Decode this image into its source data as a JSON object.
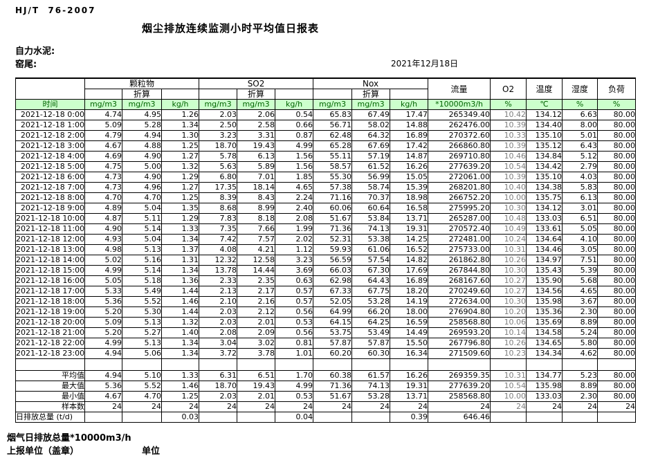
{
  "page": {
    "standard_code": "HJ/T  76-2007",
    "title": "烟尘排放连续监测小时平均值日报表",
    "company": "自力水泥:",
    "station": "窑尾:",
    "report_date": "2021年12月18日"
  },
  "table": {
    "time_label": "时间",
    "groups": {
      "pm": "颗粒物",
      "so2": "SO2",
      "nox": "Nox",
      "conv": "折算",
      "flow": "流量",
      "o2": "O2",
      "temp": "温度",
      "humidity": "湿度",
      "load": "负荷"
    },
    "units": [
      "mg/m3",
      "mg/m3",
      "kg/h",
      "mg/m3",
      "mg/m3",
      "kg/h",
      "mg/m3",
      "mg/m3",
      "kg/h",
      "*10000m3/h",
      "%",
      "℃",
      "%",
      "%"
    ],
    "rows": [
      [
        "2021-12-18 0:00",
        "4.74",
        "4.95",
        "1.26",
        "2.03",
        "2.06",
        "0.54",
        "65.83",
        "67.49",
        "17.47",
        "265349.40",
        "10.42",
        "134.12",
        "6.63",
        "80.00"
      ],
      [
        "2021-12-18 1:00",
        "5.09",
        "5.28",
        "1.34",
        "2.50",
        "2.58",
        "0.66",
        "56.71",
        "58.02",
        "14.88",
        "262476.00",
        "10.39",
        "134.40",
        "8.00",
        "80.00"
      ],
      [
        "2021-12-18 2:00",
        "4.79",
        "4.94",
        "1.30",
        "3.23",
        "3.31",
        "0.87",
        "62.48",
        "64.32",
        "16.89",
        "270372.60",
        "10.33",
        "135.10",
        "5.01",
        "80.00"
      ],
      [
        "2021-12-18 3:00",
        "4.67",
        "4.88",
        "1.25",
        "18.70",
        "19.43",
        "4.99",
        "65.28",
        "67.69",
        "17.42",
        "266860.80",
        "10.39",
        "135.12",
        "6.43",
        "80.00"
      ],
      [
        "2021-12-18 4:00",
        "4.69",
        "4.90",
        "1.27",
        "5.78",
        "6.13",
        "1.56",
        "55.11",
        "57.19",
        "14.87",
        "269710.80",
        "10.46",
        "134.84",
        "5.12",
        "80.00"
      ],
      [
        "2021-12-18 5:00",
        "4.75",
        "5.00",
        "1.32",
        "5.63",
        "5.89",
        "1.56",
        "58.57",
        "61.52",
        "16.26",
        "277639.20",
        "10.54",
        "134.42",
        "2.79",
        "80.00"
      ],
      [
        "2021-12-18 6:00",
        "4.73",
        "4.90",
        "1.29",
        "6.80",
        "7.01",
        "1.85",
        "55.30",
        "56.99",
        "15.05",
        "272061.00",
        "10.39",
        "135.10",
        "4.03",
        "80.00"
      ],
      [
        "2021-12-18 7:00",
        "4.73",
        "4.96",
        "1.27",
        "17.35",
        "18.14",
        "4.65",
        "57.38",
        "58.74",
        "15.39",
        "268201.80",
        "10.40",
        "134.38",
        "5.83",
        "80.00"
      ],
      [
        "2021-12-18 8:00",
        "4.70",
        "4.70",
        "1.25",
        "8.39",
        "8.43",
        "2.24",
        "71.16",
        "70.37",
        "18.98",
        "266752.20",
        "10.00",
        "135.75",
        "6.13",
        "80.00"
      ],
      [
        "2021-12-18 9:00",
        "4.89",
        "5.04",
        "1.35",
        "8.68",
        "8.99",
        "2.40",
        "60.06",
        "60.64",
        "16.58",
        "275995.20",
        "10.30",
        "134.12",
        "3.01",
        "80.00"
      ],
      [
        "2021-12-18 10:00",
        "4.87",
        "5.11",
        "1.29",
        "7.83",
        "8.18",
        "2.08",
        "51.67",
        "53.84",
        "13.71",
        "265287.00",
        "10.48",
        "133.03",
        "6.51",
        "80.00"
      ],
      [
        "2021-12-18 11:00",
        "4.90",
        "5.14",
        "1.33",
        "7.35",
        "7.66",
        "1.99",
        "71.36",
        "74.13",
        "19.31",
        "270572.40",
        "10.49",
        "133.61",
        "5.05",
        "80.00"
      ],
      [
        "2021-12-18 12:00",
        "4.93",
        "5.04",
        "1.34",
        "7.42",
        "7.57",
        "2.02",
        "52.31",
        "53.38",
        "14.25",
        "272481.00",
        "10.24",
        "134.64",
        "4.10",
        "80.00"
      ],
      [
        "2021-12-18 13:00",
        "4.98",
        "5.13",
        "1.37",
        "4.08",
        "4.21",
        "1.12",
        "59.93",
        "61.06",
        "16.52",
        "275733.00",
        "10.31",
        "134.46",
        "3.05",
        "80.00"
      ],
      [
        "2021-12-18 14:00",
        "5.02",
        "5.16",
        "1.31",
        "12.32",
        "12.58",
        "3.23",
        "56.59",
        "57.54",
        "14.82",
        "261862.80",
        "10.26",
        "134.97",
        "7.51",
        "80.00"
      ],
      [
        "2021-12-18 15:00",
        "4.99",
        "5.14",
        "1.34",
        "13.78",
        "14.44",
        "3.69",
        "66.03",
        "67.30",
        "17.69",
        "267844.80",
        "10.30",
        "135.43",
        "5.39",
        "80.00"
      ],
      [
        "2021-12-18 16:00",
        "5.05",
        "5.18",
        "1.36",
        "2.33",
        "2.35",
        "0.63",
        "62.98",
        "64.43",
        "16.89",
        "268167.60",
        "10.27",
        "135.90",
        "5.68",
        "80.00"
      ],
      [
        "2021-12-18 17:00",
        "5.33",
        "5.49",
        "1.44",
        "2.13",
        "2.17",
        "0.57",
        "67.33",
        "67.75",
        "18.20",
        "270249.60",
        "10.27",
        "134.56",
        "4.65",
        "80.00"
      ],
      [
        "2021-12-18 18:00",
        "5.36",
        "5.52",
        "1.46",
        "2.10",
        "2.16",
        "0.57",
        "52.05",
        "53.28",
        "14.19",
        "272634.00",
        "10.30",
        "135.98",
        "3.67",
        "80.00"
      ],
      [
        "2021-12-18 19:00",
        "5.20",
        "5.30",
        "1.44",
        "2.03",
        "2.12",
        "0.56",
        "64.99",
        "66.20",
        "18.00",
        "276904.80",
        "10.20",
        "135.36",
        "2.30",
        "80.00"
      ],
      [
        "2021-12-18 20:00",
        "5.09",
        "5.13",
        "1.32",
        "2.03",
        "2.01",
        "0.53",
        "64.15",
        "64.25",
        "16.59",
        "258568.80",
        "10.06",
        "135.69",
        "8.89",
        "80.00"
      ],
      [
        "2021-12-18 21:00",
        "5.20",
        "5.27",
        "1.40",
        "2.08",
        "2.09",
        "0.56",
        "53.75",
        "53.49",
        "14.49",
        "269593.20",
        "10.14",
        "134.58",
        "5.24",
        "80.00"
      ],
      [
        "2021-12-18 22:00",
        "4.99",
        "5.13",
        "1.34",
        "3.04",
        "3.02",
        "0.81",
        "57.87",
        "57.87",
        "15.50",
        "267796.80",
        "10.26",
        "134.65",
        "5.80",
        "80.00"
      ],
      [
        "2021-12-18 23:00",
        "4.94",
        "5.06",
        "1.34",
        "3.72",
        "3.78",
        "1.01",
        "60.20",
        "60.30",
        "16.34",
        "271509.60",
        "10.23",
        "134.34",
        "4.62",
        "80.00"
      ]
    ],
    "summary_rows": [
      [
        "平均值",
        "4.94",
        "5.10",
        "1.33",
        "6.31",
        "6.51",
        "1.70",
        "60.38",
        "61.57",
        "16.26",
        "269359.35",
        "10.31",
        "134.77",
        "5.23",
        "80.00"
      ],
      [
        "最大值",
        "5.36",
        "5.52",
        "1.46",
        "18.70",
        "19.43",
        "4.99",
        "71.36",
        "74.13",
        "19.31",
        "277639.20",
        "10.54",
        "135.98",
        "8.89",
        "80.00"
      ],
      [
        "最小值",
        "4.67",
        "4.70",
        "1.25",
        "2.03",
        "2.01",
        "0.53",
        "51.67",
        "53.28",
        "13.71",
        "258568.80",
        "10.00",
        "133.03",
        "2.30",
        "80.00"
      ],
      [
        "样本数",
        "24",
        "24",
        "24",
        "24",
        "24",
        "24",
        "24",
        "24",
        "24",
        "24",
        "24",
        "24",
        "24",
        "24"
      ],
      [
        "日排放总量 (t/d)",
        "",
        "",
        "0.03",
        "",
        "",
        "0.04",
        "",
        "",
        "0.39",
        "646.46",
        "",
        "",
        "",
        ""
      ]
    ]
  },
  "footer": {
    "flue_gas_total": "烟气日排放总量*10000m3/h",
    "report_unit": "上报单位（盖章）",
    "unit": "单位"
  },
  "colors": {
    "header_green_bg": "#ccffcc",
    "header_green_text": "#006400",
    "o2_value_text": "#7d7d7d"
  }
}
